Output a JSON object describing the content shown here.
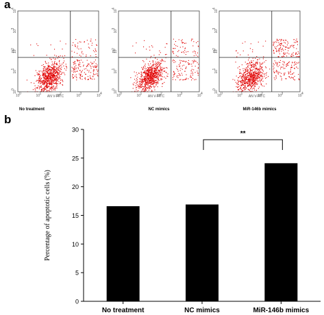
{
  "panel_a_letter": "a",
  "panel_b_letter": "b",
  "chart_data": [
    {
      "type": "scatter",
      "panels": [
        {
          "label": "No treatment",
          "quadrants": {
            "lower_left": 0.8,
            "lower_right": 0.14,
            "upper_right": 0.04,
            "upper_left": 0.02
          }
        },
        {
          "label": "NC mimics",
          "quadrants": {
            "lower_left": 0.8,
            "lower_right": 0.12,
            "upper_right": 0.06,
            "upper_left": 0.02
          }
        },
        {
          "label": "MiR-146b mimics",
          "quadrants": {
            "lower_left": 0.72,
            "lower_right": 0.12,
            "upper_right": 0.14,
            "upper_left": 0.02
          }
        }
      ],
      "xlabel": "AN V-FITC",
      "ylabel": "PI",
      "xscale": "log",
      "yscale": "log",
      "xlim": [
        1,
        10000
      ],
      "ylim": [
        1,
        10000
      ],
      "tick_labels": [
        "10",
        "10",
        "10",
        "10",
        "10"
      ],
      "tick_exponents": [
        "0",
        "1",
        "2",
        "3",
        "4"
      ],
      "point_color": "#e00000",
      "quadrant_gate": {
        "x": 400,
        "y": 50
      }
    },
    {
      "type": "bar",
      "categories": [
        "No treatment",
        "NC mimics",
        "MiR-146b mimics"
      ],
      "values": [
        16.6,
        16.9,
        24.1
      ],
      "ylabel": "Percentage of apoptotic cells (%)",
      "ylim": [
        0,
        30
      ],
      "yticks": [
        "0",
        "5",
        "10",
        "15",
        "20",
        "25",
        "30"
      ],
      "bar_color": "#000000",
      "significance": {
        "label": "**",
        "between": [
          "NC mimics",
          "MiR-146b mimics"
        ]
      }
    }
  ]
}
